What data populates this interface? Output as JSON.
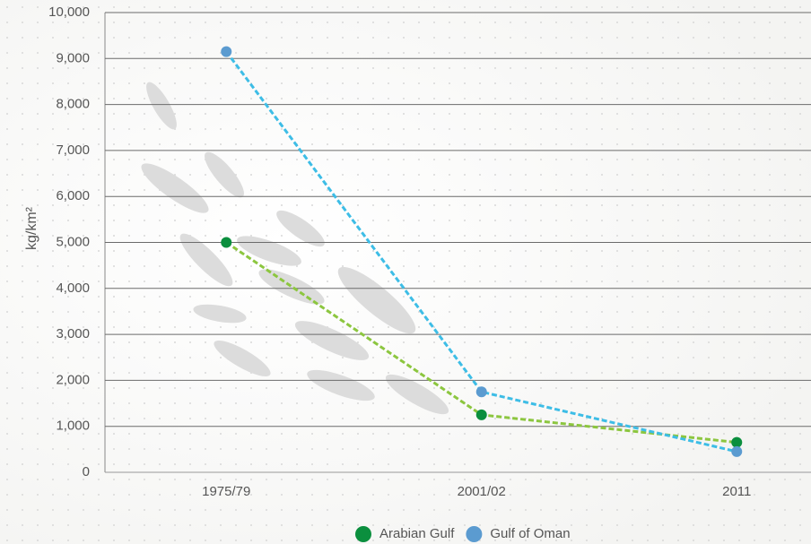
{
  "chart_data": {
    "type": "line",
    "ylabel": "kg/km²",
    "categories": [
      "1975/79",
      "2001/02",
      "2011"
    ],
    "series": [
      {
        "name": "Arabian Gulf",
        "color": "#0b8f3e",
        "line_color": "#8cc63f",
        "values": [
          5000,
          1250,
          650
        ]
      },
      {
        "name": "Gulf of Oman",
        "color": "#5b9bd0",
        "line_color": "#3dbde6",
        "values": [
          9150,
          1750,
          450
        ]
      }
    ],
    "ylim": [
      0,
      10000
    ],
    "yticks": [
      0,
      {
        "value": 1000,
        "label": "1,000"
      },
      {
        "value": 2000,
        "label": "2,000"
      },
      {
        "value": 3000,
        "label": "3,000"
      },
      {
        "value": 4000,
        "label": "4,000"
      },
      {
        "value": 5000,
        "label": "5,000"
      },
      {
        "value": 6000,
        "label": "6,000"
      },
      {
        "value": 7000,
        "label": "7,000"
      },
      {
        "value": 8000,
        "label": "8,000"
      },
      {
        "value": 9000,
        "label": "9,000"
      },
      {
        "value": 10000,
        "label": "10,000"
      }
    ],
    "grid": true,
    "dashed": true
  }
}
